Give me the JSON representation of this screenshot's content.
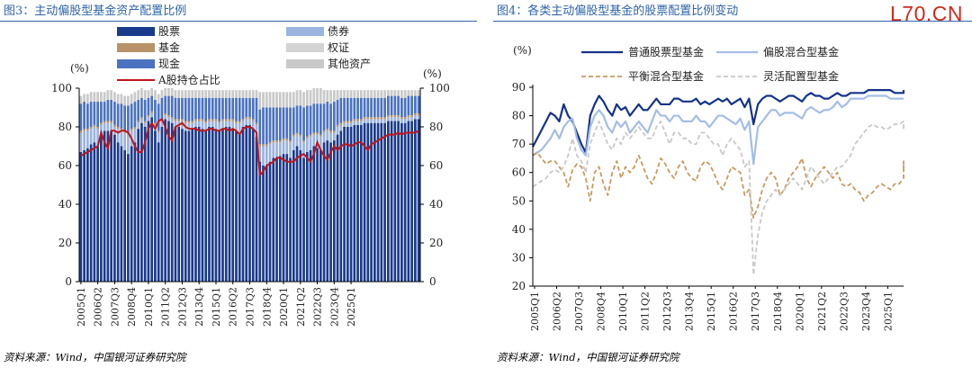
{
  "watermark": "L70.CN",
  "source_left": "资料来源：Wind，中国银河证券研究院",
  "source_right": "资料来源：Wind，中国银河证券研究院",
  "x_ticks": [
    "2005Q1",
    "2006Q2",
    "2007Q3",
    "2008Q4",
    "2010Q1",
    "2011Q2",
    "2012Q3",
    "2013Q4",
    "2015Q1",
    "2016Q2",
    "2017Q3",
    "2018Q4",
    "2020Q1",
    "2021Q2",
    "2022Q3",
    "2023Q4",
    "2025Q1"
  ],
  "chart_data": [
    {
      "type": "bar",
      "title": "图3：主动偏股型基金资产配置比例",
      "ylabel_left": "(%)",
      "ylabel_right": "(%)",
      "ylim": [
        0,
        100
      ],
      "y_ticks": [
        0,
        20,
        40,
        60,
        80,
        100
      ],
      "stacked": true,
      "legend": [
        {
          "name": "股票",
          "color": "#1a3a8c",
          "kind": "box"
        },
        {
          "name": "债券",
          "color": "#9ab3df",
          "kind": "box"
        },
        {
          "name": "基金",
          "color": "#b8936a",
          "kind": "box"
        },
        {
          "name": "权证",
          "color": "#d3d3d3",
          "kind": "box"
        },
        {
          "name": "现金",
          "color": "#4a72c0",
          "kind": "box"
        },
        {
          "name": "其他资产",
          "color": "#c9c9c9",
          "kind": "box"
        },
        {
          "name": "A股持仓占比",
          "color": "#c0151b",
          "kind": "line"
        }
      ],
      "series": [
        {
          "name": "股票",
          "color": "#1a3a8c",
          "values": [
            67,
            68,
            69,
            71,
            72,
            70,
            77,
            78,
            78,
            78,
            76,
            72,
            70,
            68,
            66,
            70,
            72,
            79,
            82,
            80,
            83,
            85,
            78,
            72,
            80,
            84,
            83,
            82,
            80,
            80,
            79,
            78,
            78,
            79,
            80,
            80,
            79,
            78,
            80,
            80,
            79,
            78,
            79,
            80,
            80,
            79,
            78,
            77,
            80,
            81,
            81,
            79,
            75,
            62,
            60,
            60,
            62,
            64,
            64,
            65,
            66,
            66,
            64,
            68,
            70,
            68,
            64,
            67,
            68,
            70,
            69,
            68,
            72,
            73,
            72,
            73,
            76,
            78,
            80,
            80,
            80,
            81,
            81,
            81,
            82,
            82,
            82,
            82,
            82,
            82,
            82,
            83,
            83,
            83,
            83,
            82,
            82,
            83,
            83,
            84,
            84
          ]
        },
        {
          "name": "债券",
          "color": "#9ab3df",
          "values": [
            10,
            10,
            9,
            8,
            8,
            9,
            4,
            4,
            4,
            4,
            4,
            7,
            8,
            9,
            10,
            8,
            7,
            3,
            2,
            2,
            2,
            2,
            3,
            5,
            3,
            2,
            2,
            2,
            3,
            3,
            4,
            4,
            4,
            3,
            3,
            3,
            4,
            4,
            3,
            3,
            4,
            4,
            4,
            3,
            3,
            4,
            4,
            5,
            3,
            3,
            3,
            4,
            6,
            8,
            10,
            10,
            9,
            8,
            8,
            7,
            7,
            7,
            8,
            7,
            6,
            7,
            8,
            7,
            7,
            6,
            7,
            7,
            5,
            5,
            5,
            4,
            4,
            3,
            2,
            2,
            2,
            2,
            2,
            2,
            2,
            2,
            2,
            2,
            2,
            2,
            2,
            2,
            2,
            2,
            2,
            2,
            2,
            2,
            2,
            2,
            2
          ]
        },
        {
          "name": "基金",
          "color": "#b8936a",
          "values": [
            1,
            1,
            1,
            1,
            1,
            1,
            1,
            1,
            1,
            1,
            1,
            1,
            1,
            1,
            1,
            1,
            1,
            1,
            1,
            1,
            1,
            1,
            1,
            1,
            1,
            1,
            1,
            1,
            1,
            1,
            1,
            1,
            1,
            1,
            1,
            1,
            1,
            1,
            1,
            1,
            1,
            1,
            1,
            1,
            1,
            1,
            1,
            1,
            1,
            1,
            1,
            1,
            1,
            1,
            1,
            1,
            1,
            1,
            1,
            1,
            1,
            1,
            1,
            1,
            1,
            1,
            1,
            1,
            1,
            1,
            1,
            1,
            1,
            1,
            1,
            1,
            1,
            1,
            1,
            1,
            1,
            1,
            1,
            1,
            1,
            1,
            1,
            1,
            1,
            1,
            1,
            1,
            1,
            1,
            1,
            1,
            1,
            1,
            1,
            1,
            1
          ]
        },
        {
          "name": "权证",
          "color": "#d3d3d3",
          "values": [
            0,
            0,
            0,
            0,
            0,
            0,
            0,
            0,
            0,
            0,
            0,
            0,
            0,
            0,
            0,
            0,
            0,
            0,
            0,
            0,
            0,
            0,
            0,
            0,
            0,
            0,
            0,
            0,
            0,
            0,
            0,
            0,
            0,
            0,
            0,
            0,
            0,
            0,
            0,
            0,
            0,
            0,
            0,
            0,
            0,
            0,
            0,
            0,
            0,
            0,
            0,
            0,
            0,
            0,
            0,
            0,
            0,
            0,
            0,
            0,
            0,
            0,
            0,
            0,
            0,
            0,
            0,
            0,
            0,
            0,
            0,
            0,
            0,
            0,
            0,
            0,
            0,
            0,
            0,
            0,
            0,
            0,
            0,
            0,
            0,
            0,
            0,
            0,
            0,
            0,
            0,
            0,
            0,
            0,
            0,
            0,
            0,
            0,
            0,
            0,
            0
          ]
        },
        {
          "name": "现金",
          "color": "#4a72c0",
          "values": [
            14,
            14,
            13,
            13,
            12,
            13,
            11,
            10,
            11,
            11,
            12,
            12,
            13,
            13,
            14,
            13,
            13,
            11,
            10,
            11,
            9,
            8,
            12,
            14,
            11,
            9,
            10,
            11,
            11,
            11,
            11,
            12,
            12,
            12,
            11,
            11,
            11,
            12,
            11,
            11,
            11,
            12,
            11,
            11,
            11,
            11,
            12,
            12,
            11,
            10,
            10,
            11,
            13,
            18,
            19,
            19,
            18,
            17,
            17,
            17,
            16,
            16,
            17,
            14,
            14,
            15,
            17,
            16,
            15,
            15,
            15,
            16,
            14,
            14,
            14,
            15,
            13,
            13,
            12,
            12,
            12,
            11,
            11,
            11,
            10,
            10,
            10,
            10,
            10,
            10,
            10,
            10,
            10,
            10,
            10,
            10,
            10,
            10,
            10,
            9,
            9
          ]
        },
        {
          "name": "其他资产",
          "color": "#c9c9c9",
          "values": [
            4,
            4,
            5,
            5,
            5,
            5,
            5,
            5,
            5,
            5,
            5,
            5,
            5,
            5,
            5,
            5,
            5,
            5,
            5,
            5,
            4,
            4,
            5,
            5,
            4,
            4,
            4,
            4,
            4,
            4,
            4,
            4,
            4,
            4,
            4,
            4,
            4,
            4,
            4,
            4,
            4,
            4,
            4,
            4,
            4,
            4,
            4,
            4,
            4,
            4,
            4,
            4,
            4,
            9,
            8,
            8,
            8,
            8,
            8,
            8,
            8,
            8,
            8,
            8,
            8,
            8,
            8,
            8,
            8,
            8,
            8,
            8,
            7,
            6,
            7,
            6,
            5,
            4,
            4,
            4,
            4,
            4,
            4,
            4,
            4,
            4,
            4,
            4,
            4,
            4,
            4,
            3,
            3,
            3,
            3,
            4,
            4,
            3,
            3,
            3,
            3
          ]
        },
        {
          "name": "A股持仓占比",
          "color": "#c0151b",
          "kind": "line",
          "values": [
            65,
            66,
            67,
            68,
            69,
            70,
            77,
            72,
            69,
            78,
            78,
            77,
            78,
            78,
            77,
            74,
            70,
            67,
            67,
            72,
            79,
            82,
            79,
            83,
            84,
            80,
            75,
            73,
            80,
            81,
            82,
            80,
            79,
            79,
            79,
            78,
            78,
            78,
            79,
            79,
            78,
            78,
            79,
            79,
            78,
            79,
            78,
            76,
            79,
            80,
            80,
            79,
            77,
            55,
            57,
            60,
            61,
            62,
            64,
            64,
            63,
            62,
            62,
            62,
            64,
            65,
            66,
            64,
            62,
            66,
            72,
            68,
            65,
            63,
            67,
            70,
            68,
            70,
            71,
            71,
            70,
            71,
            72,
            72,
            70,
            68,
            71,
            72,
            73,
            74,
            75,
            76,
            76,
            76,
            77,
            76,
            77,
            77,
            77,
            77,
            78
          ]
        }
      ]
    },
    {
      "type": "line",
      "title": "图4：各类主动偏股型基金的股票配置比例变动",
      "ylabel": "(%)",
      "ylim": [
        20,
        90
      ],
      "y_ticks": [
        20,
        30,
        40,
        50,
        60,
        70,
        80,
        90
      ],
      "series": [
        {
          "name": "普通股票型基金",
          "color": "#14338a",
          "style": "solid",
          "width": 2.2,
          "values": [
            69,
            72,
            75,
            78,
            81,
            80,
            78,
            84,
            80,
            78,
            74,
            70,
            67,
            80,
            84,
            87,
            85,
            82,
            80,
            84,
            82,
            83,
            80,
            82,
            84,
            82,
            82,
            84,
            86,
            84,
            84,
            84,
            86,
            86,
            85,
            85,
            85,
            86,
            84,
            85,
            84,
            85,
            86,
            85,
            86,
            84,
            85,
            86,
            83,
            86,
            77,
            84,
            86,
            87,
            87,
            86,
            85,
            86,
            87,
            87,
            86,
            85,
            87,
            88,
            87,
            87,
            86,
            86,
            87,
            88,
            87,
            87,
            88,
            88,
            88,
            88,
            89,
            89,
            89,
            89,
            89,
            89,
            88,
            88,
            88,
            88,
            89
          ]
        },
        {
          "name": "偏股混合型基金",
          "color": "#a5bde6",
          "style": "solid",
          "width": 2.2,
          "values": [
            66,
            67,
            68,
            70,
            72,
            75,
            72,
            76,
            78,
            79,
            72,
            68,
            66,
            76,
            80,
            82,
            80,
            76,
            74,
            78,
            76,
            78,
            74,
            76,
            78,
            76,
            74,
            78,
            82,
            80,
            80,
            78,
            80,
            80,
            78,
            78,
            78,
            80,
            78,
            78,
            76,
            78,
            80,
            80,
            79,
            78,
            77,
            79,
            75,
            78,
            63,
            76,
            78,
            80,
            82,
            82,
            80,
            81,
            81,
            81,
            80,
            79,
            82,
            83,
            82,
            81,
            82,
            82,
            83,
            85,
            83,
            84,
            86,
            86,
            86,
            86,
            87,
            87,
            87,
            87,
            87,
            86,
            86,
            86,
            86,
            86,
            86
          ]
        },
        {
          "name": "平衡混合型基金",
          "color": "#c89a60",
          "style": "dashed",
          "width": 1.8,
          "values": [
            66,
            67,
            65,
            63,
            64,
            64,
            62,
            60,
            55,
            61,
            63,
            62,
            58,
            50,
            60,
            62,
            56,
            52,
            60,
            64,
            58,
            62,
            60,
            62,
            66,
            62,
            58,
            56,
            60,
            65,
            63,
            60,
            58,
            62,
            64,
            60,
            58,
            57,
            62,
            64,
            63,
            60,
            56,
            54,
            58,
            62,
            61,
            60,
            52,
            54,
            44,
            48,
            54,
            58,
            60,
            58,
            52,
            54,
            58,
            60,
            62,
            65,
            58,
            55,
            58,
            60,
            62,
            60,
            58,
            60,
            56,
            55,
            56,
            54,
            53,
            50,
            52,
            53,
            55,
            56,
            55,
            54,
            56,
            56,
            58,
            62,
            64,
            60
          ]
        },
        {
          "name": "灵活配置型基金",
          "color": "#c8c8c8",
          "style": "dashed",
          "width": 1.8,
          "values": [
            55,
            56,
            57,
            58,
            60,
            61,
            60,
            62,
            66,
            72,
            66,
            64,
            60,
            70,
            74,
            78,
            74,
            70,
            68,
            72,
            70,
            74,
            72,
            74,
            76,
            74,
            72,
            72,
            76,
            78,
            74,
            70,
            74,
            74,
            72,
            72,
            70,
            70,
            74,
            74,
            72,
            70,
            70,
            66,
            70,
            72,
            70,
            68,
            62,
            64,
            24,
            38,
            46,
            50,
            52,
            54,
            52,
            54,
            56,
            58,
            56,
            54,
            58,
            62,
            60,
            58,
            56,
            58,
            60,
            62,
            62,
            64,
            66,
            70,
            72,
            74,
            76,
            77,
            76,
            76,
            75,
            76,
            77,
            77,
            78,
            75
          ]
        }
      ]
    }
  ]
}
